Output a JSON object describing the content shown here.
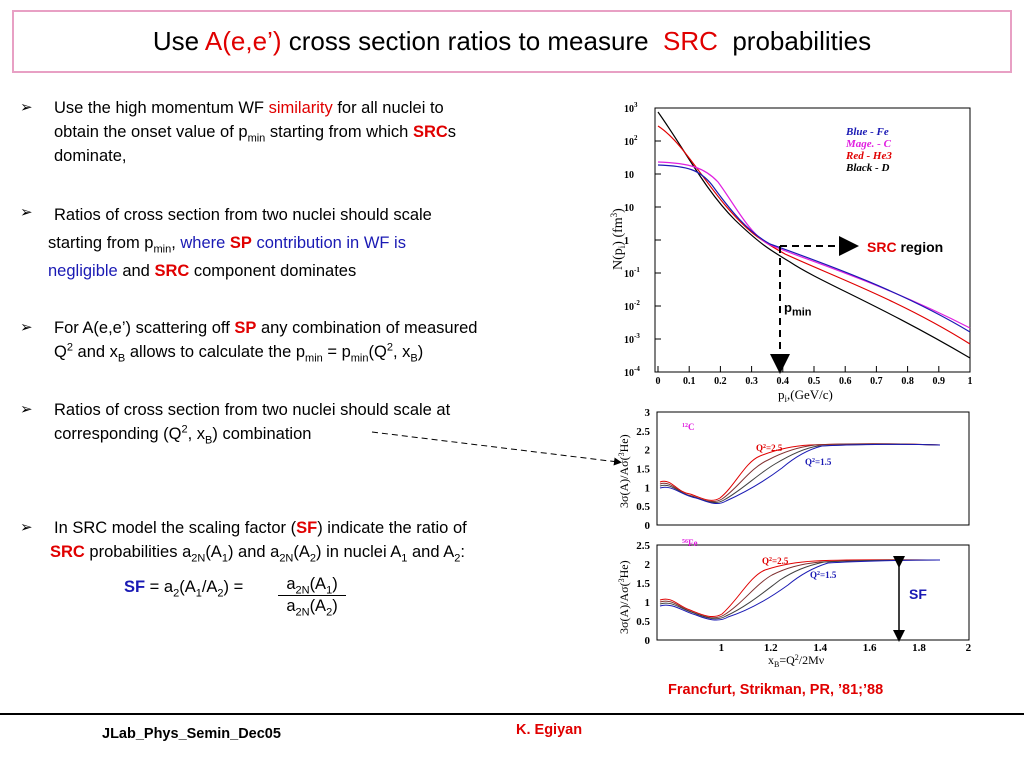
{
  "title": {
    "pre": "Use ",
    "red1": "A(e,e’)",
    "mid": " cross section ratios to measure  ",
    "red2": "SRC",
    "post": "  probabilities"
  },
  "bullets": {
    "b1": {
      "t1": "Use the high momentum WF ",
      "r1": "similarity",
      "t2": " for all nuclei to",
      "t3": "obtain the onset value of p",
      "s1": "min",
      "t4": " starting from which ",
      "r2": "SRC",
      "t5": "s",
      "t6": "dominate,"
    },
    "b2": {
      "t1": "Ratios of cross section from two nuclei should scale",
      "t2": "starting from p",
      "s1": "min",
      "t3": ", ",
      "bl1": "where ",
      "r1": "SP",
      "bl2": " contribution in WF is",
      "bl3": "negligible",
      "t4": " and ",
      "r2": "SRC",
      "t5": " component dominates"
    },
    "b3": {
      "t1": "For A(e,e’) scattering off ",
      "r1": "SP",
      "t2": " any combination of measured",
      "t3": "Q",
      "sup1": "2",
      "t4": " and x",
      "s1": "B",
      "t5": " allows to calculate the p",
      "s2": "min",
      "t6": " = p",
      "s3": "min",
      "t7": "(Q",
      "sup2": "2",
      "t8": ", x",
      "s4": "B",
      "t9": ")"
    },
    "b4": {
      "t1": "Ratios of cross section from two nuclei should scale at",
      "t2": "corresponding  (Q",
      "sup1": "2",
      "t3": ", x",
      "s1": "B",
      "t4": ") combination"
    },
    "b5": {
      "t1": "In SRC model the scaling factor (",
      "r1": "SF",
      "t2": ") indicate the ratio of",
      "r2": "SRC",
      "t3": "  probabilities a",
      "s1": "2N",
      "t4": "(A",
      "s2": "1",
      "t5": ") and a",
      "s3": "2N",
      "t6": "(A",
      "s4": "2",
      "t7": ") in nuclei A",
      "s5": "1",
      "t8": " and A",
      "s6": "2",
      "t9": ":"
    }
  },
  "equation": {
    "sf": "SF",
    "eq1": " = a",
    "s1": "2",
    "eq2": "(A",
    "s2": "1",
    "eq3": "/A",
    "s3": "2",
    "eq4": ") =",
    "num1": "a",
    "num_s1": "2N",
    "num2": "(A",
    "num_s2": "1",
    "num3": ")",
    "den1": "a",
    "den_s1": "2N",
    "den2": "(A",
    "den_s2": "2",
    "den3": ")"
  },
  "top_plot": {
    "y_ticks": [
      "10",
      "10",
      "10",
      "10",
      "1",
      "10",
      "10",
      "10",
      "10"
    ],
    "y_exps": [
      "3",
      "2",
      "",
      "",
      "",
      "-1",
      "-2",
      "-3",
      "-4"
    ],
    "x_ticks": [
      "0",
      "0.1",
      "0.2",
      "0.3",
      "0.4",
      "0.5",
      "0.6",
      "0.7",
      "0.8",
      "0.9",
      "1"
    ],
    "ylabel": "N(p",
    "ylabel_sub": "i",
    "ylabel_end": ") (fm",
    "ylabel_sup": "3",
    "ylabel_close": ")",
    "xlabel": "p",
    "xlabel_sub": "i",
    "xlabel_end": ",(GeV/c)",
    "legend": [
      {
        "text": "Blue - Fe",
        "color": "#1a1ab4"
      },
      {
        "text": "Mage. - C",
        "color": "#e020e0"
      },
      {
        "text": "Red - He3",
        "color": "#e00000"
      },
      {
        "text": "Black - D",
        "color": "#000000"
      }
    ],
    "src_region_red": "SRC",
    "src_region_black": " region",
    "pmin": "p",
    "pmin_sub": "min"
  },
  "bottom_plots": {
    "upper": {
      "nucleus_sup": "12",
      "nucleus": "C",
      "q1": "Q",
      "q1_sup": "2",
      "q1_val": "=2.5",
      "q2": "Q",
      "q2_sup": "2",
      "q2_val": "=1.5",
      "y_ticks": [
        "3",
        "2.5",
        "2",
        "1.5",
        "1",
        "0.5",
        "0"
      ]
    },
    "lower": {
      "nucleus_sup": "56",
      "nucleus": "Fe",
      "q1": "Q",
      "q1_sup": "2",
      "q1_val": "=2.5",
      "q2": "Q",
      "q2_sup": "2",
      "q2_val": "=1.5",
      "y_ticks": [
        "2.5",
        "2",
        "1.5",
        "1",
        "0.5",
        "0"
      ]
    },
    "ylabel": "3σ(A)/Aσ(",
    "ylabel_sup": "3",
    "ylabel_end": "He)",
    "x_ticks": [
      "1",
      "1.2",
      "1.4",
      "1.6",
      "1.8",
      "2"
    ],
    "xlabel": "x",
    "xlabel_sub": "B",
    "xlabel_mid": "=Q",
    "xlabel_sup": "2",
    "xlabel_end": "/2Mν",
    "sf_label": "SF"
  },
  "reference": "Francfurt, Strikman, PR, ’81;’88",
  "footer": {
    "left": "JLab_Phys_Semin_Dec05",
    "center": "K. Egiyan"
  },
  "colors": {
    "red": "#e00000",
    "blue": "#1a1ab4",
    "magenta": "#e020e0",
    "title_border": "#e8a0c4"
  },
  "icons": {
    "bullet": "arrow-bullet-icon"
  }
}
